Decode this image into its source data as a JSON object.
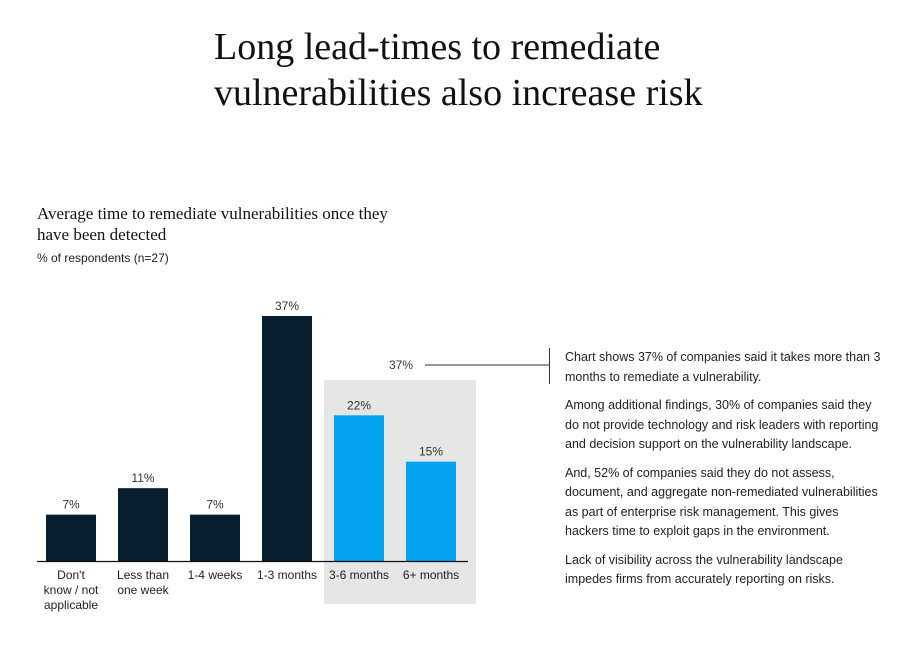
{
  "headline": "Long lead-times to remediate vulnerabilities also increase risk",
  "chart_data": {
    "type": "bar",
    "title": "Average time to remediate vulnerabilities once they have been detected",
    "subtitle": "% of respondents (n=27)",
    "categories": [
      [
        "Don't",
        "know / not",
        "applicable"
      ],
      [
        "Less than",
        "one week"
      ],
      [
        "1-4 weeks"
      ],
      [
        "1-3 months"
      ],
      [
        "3-6 months"
      ],
      [
        "6+ months"
      ]
    ],
    "values": [
      7,
      11,
      7,
      37,
      22,
      15
    ],
    "value_labels": [
      "7%",
      "11%",
      "7%",
      "37%",
      "22%",
      "15%"
    ],
    "highlight_indices": [
      4,
      5
    ],
    "highlight_label": "37%",
    "colors": {
      "default": "#081d2e",
      "highlight": "#06a3f0",
      "highlight_bg": "#e6e6e6",
      "baseline": "#111111"
    },
    "ylim": [
      0,
      37
    ]
  },
  "notes": [
    "Chart shows 37% of companies said it takes more than 3 months to remediate a vulnerability.",
    "Among additional findings, 30% of companies said they do not provide technology and risk leaders with reporting and decision support on the vulnerability landscape.",
    "And, 52% of companies said they do not assess, document, and aggregate non-remediated vulnerabilities as part of enterprise risk management. This gives hackers time to exploit gaps in the environment.",
    "Lack of visibility across the vulnerability landscape impedes firms from accurately reporting on risks."
  ]
}
